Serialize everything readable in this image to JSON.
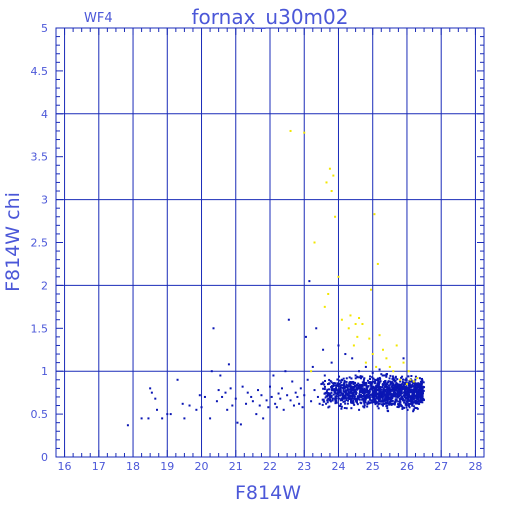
{
  "chart_data": {
    "type": "scatter",
    "title": "fornax_u30m02",
    "panel_label": "WF4",
    "xlabel": "F814W",
    "ylabel": "F814W chi",
    "xlim": [
      15.75,
      28.25
    ],
    "ylim": [
      0,
      5
    ],
    "xticks": [
      16,
      17,
      18,
      19,
      20,
      21,
      22,
      23,
      24,
      25,
      26,
      27,
      28
    ],
    "yticks": [
      0,
      0.5,
      1,
      1.5,
      2,
      2.5,
      3,
      3.5,
      4,
      4.5,
      5
    ],
    "ytick_labels": [
      "0",
      "0.5",
      "1",
      "1.5",
      "2",
      "2.5",
      "3",
      "3.5",
      "4",
      "4.5",
      "5"
    ],
    "grid": true,
    "colors": {
      "axes": "#1a2bb8",
      "text": "#4b57d8",
      "main_series": "#0a16b4",
      "highlight_series": "#f2e600"
    },
    "series": [
      {
        "color": "#0a16b4",
        "points": [
          [
            17.85,
            0.37
          ],
          [
            18.25,
            0.45
          ],
          [
            18.45,
            0.45
          ],
          [
            18.5,
            0.8
          ],
          [
            18.55,
            0.75
          ],
          [
            18.65,
            0.68
          ],
          [
            18.7,
            0.55
          ],
          [
            18.85,
            0.45
          ],
          [
            19.0,
            0.5
          ],
          [
            19.1,
            0.5
          ],
          [
            19.3,
            0.9
          ],
          [
            19.45,
            0.62
          ],
          [
            19.5,
            0.45
          ],
          [
            19.65,
            0.6
          ],
          [
            19.85,
            0.55
          ],
          [
            19.95,
            0.72
          ],
          [
            20.0,
            0.58
          ],
          [
            20.1,
            0.7
          ],
          [
            20.25,
            0.45
          ],
          [
            20.3,
            1.0
          ],
          [
            20.35,
            1.5
          ],
          [
            20.45,
            0.65
          ],
          [
            20.5,
            0.78
          ],
          [
            20.55,
            0.95
          ],
          [
            20.6,
            0.7
          ],
          [
            20.7,
            0.75
          ],
          [
            20.75,
            0.55
          ],
          [
            20.85,
            0.8
          ],
          [
            20.9,
            0.6
          ],
          [
            21.0,
            0.68
          ],
          [
            21.05,
            0.4
          ],
          [
            21.15,
            0.38
          ],
          [
            21.2,
            0.82
          ],
          [
            21.3,
            0.62
          ],
          [
            21.35,
            0.75
          ],
          [
            21.45,
            0.7
          ],
          [
            21.5,
            0.65
          ],
          [
            21.6,
            0.5
          ],
          [
            21.65,
            0.78
          ],
          [
            21.7,
            0.6
          ],
          [
            21.75,
            0.72
          ],
          [
            21.8,
            0.45
          ],
          [
            21.9,
            0.66
          ],
          [
            21.95,
            0.58
          ],
          [
            22.0,
            0.82
          ],
          [
            22.05,
            0.7
          ],
          [
            22.1,
            0.95
          ],
          [
            22.15,
            0.62
          ],
          [
            22.2,
            0.58
          ],
          [
            22.25,
            0.74
          ],
          [
            22.3,
            0.68
          ],
          [
            22.35,
            0.8
          ],
          [
            22.4,
            0.55
          ],
          [
            22.45,
            1.0
          ],
          [
            22.5,
            0.72
          ],
          [
            22.55,
            1.6
          ],
          [
            22.6,
            0.66
          ],
          [
            22.65,
            0.88
          ],
          [
            22.7,
            0.6
          ],
          [
            22.75,
            0.75
          ],
          [
            22.8,
            0.7
          ],
          [
            22.85,
            0.62
          ],
          [
            22.9,
            0.8
          ],
          [
            22.95,
            0.58
          ],
          [
            23.0,
            0.72
          ],
          [
            23.05,
            1.4
          ],
          [
            23.1,
            0.9
          ],
          [
            23.15,
            2.05
          ],
          [
            23.2,
            0.65
          ],
          [
            23.25,
            1.05
          ],
          [
            23.3,
            0.78
          ],
          [
            23.35,
            1.5
          ],
          [
            23.4,
            0.7
          ],
          [
            23.45,
            0.62
          ],
          [
            23.5,
            0.85
          ],
          [
            23.55,
            1.25
          ],
          [
            23.6,
            0.95
          ],
          [
            23.7,
            0.72
          ],
          [
            23.8,
            1.1
          ],
          [
            23.9,
            0.68
          ],
          [
            24.0,
            1.3
          ],
          [
            24.1,
            0.9
          ],
          [
            24.2,
            1.2
          ],
          [
            24.3,
            0.75
          ],
          [
            24.4,
            1.15
          ],
          [
            24.5,
            0.95
          ],
          [
            24.6,
            1.0
          ],
          [
            24.7,
            0.82
          ],
          [
            24.8,
            1.05
          ],
          [
            24.9,
            0.7
          ],
          [
            25.0,
            0.98
          ],
          [
            25.1,
            0.78
          ],
          [
            25.2,
            1.02
          ],
          [
            25.3,
            0.85
          ],
          [
            25.4,
            0.95
          ],
          [
            25.5,
            0.68
          ],
          [
            25.6,
            0.92
          ],
          [
            25.7,
            0.8
          ],
          [
            25.8,
            0.88
          ],
          [
            25.9,
            1.15
          ],
          [
            26.0,
            0.75
          ],
          [
            26.1,
            0.62
          ],
          [
            26.2,
            0.55
          ],
          [
            26.3,
            0.72
          ],
          [
            20.8,
            1.08
          ]
        ],
        "dense_cluster": {
          "x_range": [
            23.5,
            26.5
          ],
          "y_range": [
            0.5,
            1.0
          ]
        }
      },
      {
        "color": "#f2e600",
        "points": [
          [
            22.6,
            3.8
          ],
          [
            23.0,
            3.78
          ],
          [
            23.3,
            2.5
          ],
          [
            23.6,
            1.75
          ],
          [
            23.65,
            3.2
          ],
          [
            23.7,
            1.9
          ],
          [
            23.75,
            3.36
          ],
          [
            23.8,
            3.1
          ],
          [
            23.85,
            3.28
          ],
          [
            23.9,
            2.8
          ],
          [
            24.0,
            2.1
          ],
          [
            24.1,
            1.6
          ],
          [
            24.3,
            1.5
          ],
          [
            24.35,
            1.65
          ],
          [
            24.45,
            1.3
          ],
          [
            24.5,
            1.55
          ],
          [
            24.55,
            1.4
          ],
          [
            24.6,
            1.62
          ],
          [
            24.7,
            1.55
          ],
          [
            24.8,
            1.1
          ],
          [
            24.9,
            1.38
          ],
          [
            24.95,
            1.95
          ],
          [
            25.0,
            1.2
          ],
          [
            25.05,
            2.83
          ],
          [
            25.1,
            1.05
          ],
          [
            25.15,
            2.25
          ],
          [
            25.2,
            1.42
          ],
          [
            25.3,
            1.25
          ],
          [
            25.4,
            1.15
          ],
          [
            25.5,
            1.05
          ],
          [
            25.6,
            1.0
          ],
          [
            25.7,
            1.3
          ],
          [
            25.8,
            0.9
          ],
          [
            25.9,
            1.1
          ],
          [
            26.0,
            0.85
          ],
          [
            26.05,
            1.0
          ],
          [
            26.1,
            0.9
          ],
          [
            26.2,
            0.88
          ],
          [
            26.3,
            0.92
          ],
          [
            23.2,
            1.0
          ]
        ]
      }
    ]
  }
}
